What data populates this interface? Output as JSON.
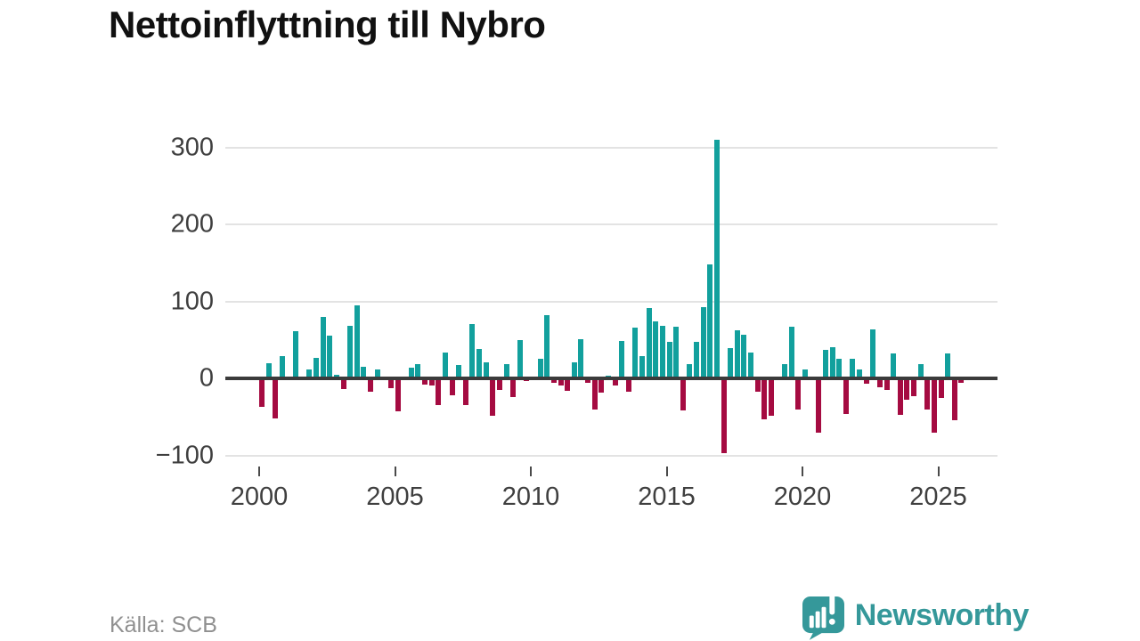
{
  "title": "Nettoinflyttning till Nybro",
  "source": "Källa: SCB",
  "brand": {
    "name": "Newsworthy",
    "color": "#35989a"
  },
  "colors": {
    "positive_bar": "#12a09d",
    "negative_bar": "#a50b41",
    "axis": "#3b3b3b",
    "grid": "#e3e3e3",
    "tick_label": "#3f3f3f"
  },
  "chart_data": {
    "type": "bar",
    "title": "Nettoinflyttning till Nybro",
    "xlabel": "",
    "ylabel": "",
    "frequency": "quarterly",
    "start_period": "2000-Q1",
    "end_period": "2025-Q4",
    "ylim": [
      -110,
      330
    ],
    "grid": "horizontal",
    "y_ticks": [
      300,
      200,
      100,
      0,
      -100
    ],
    "y_tick_labels": [
      "300",
      "200",
      "100",
      "0",
      "−100"
    ],
    "x_tick_years": [
      2000,
      2005,
      2010,
      2015,
      2020,
      2025
    ],
    "x_tick_labels": [
      "2000",
      "2005",
      "2010",
      "2015",
      "2020",
      "2025"
    ],
    "values": [
      -37,
      20,
      -52,
      29,
      0,
      61,
      0,
      11,
      27,
      80,
      56,
      5,
      -14,
      68,
      95,
      15,
      -17,
      12,
      0,
      -13,
      -43,
      0,
      14,
      19,
      -8,
      -9,
      -35,
      34,
      -22,
      17,
      -35,
      71,
      38,
      21,
      -48,
      -15,
      19,
      -24,
      50,
      -4,
      0,
      25,
      82,
      -6,
      -9,
      -16,
      21,
      51,
      -6,
      -41,
      -18,
      4,
      -9,
      49,
      -17,
      66,
      29,
      91,
      74,
      68,
      47,
      67,
      -42,
      19,
      47,
      93,
      148,
      310,
      -97,
      39,
      62,
      57,
      34,
      -17,
      -53,
      -49,
      0,
      19,
      67,
      -40,
      11,
      0,
      -71,
      37,
      41,
      26,
      -46,
      25,
      11,
      -7,
      64,
      -11,
      -15,
      32,
      -47,
      -28,
      -23,
      18,
      -41,
      -70,
      -25,
      32,
      -54,
      -6
    ]
  }
}
